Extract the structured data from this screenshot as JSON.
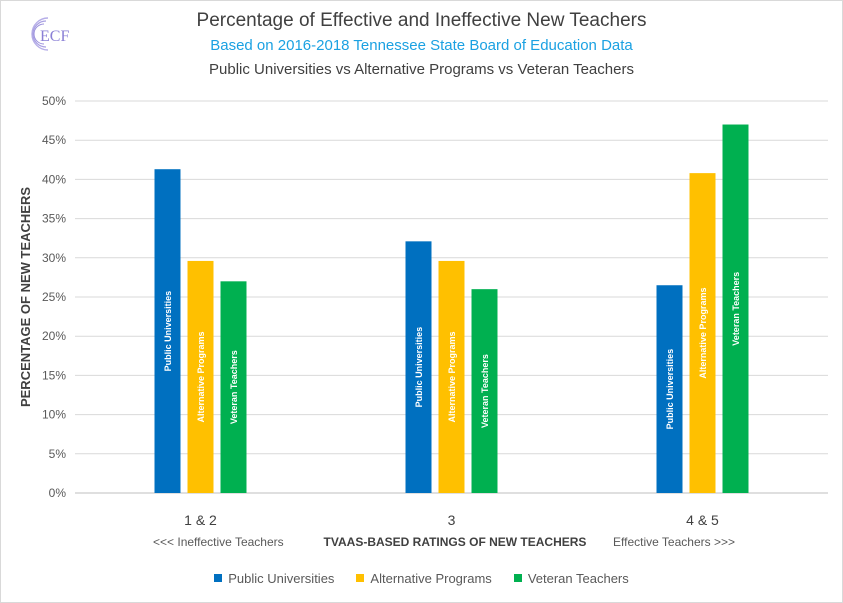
{
  "logo": {
    "text": "ECF",
    "color": "#8a7fd6"
  },
  "chart_data": {
    "type": "bar",
    "title": "Percentage of Effective and Ineffective New Teachers",
    "subtitle": "Based on 2016-2018 Tennessee State Board of Education Data",
    "subtitle2": "Public Universities vs Alternative Programs vs Veteran Teachers",
    "ylabel": "PERCENTAGE OF NEW TEACHERS",
    "xlabel": "TVAAS-BASED RATINGS OF NEW TEACHERS",
    "xlabel_left": "<<<  Ineffective Teachers",
    "xlabel_right": "Effective Teachers  >>>",
    "categories": [
      "1 & 2",
      "3",
      "4 & 5"
    ],
    "yticks": [
      "0%",
      "5%",
      "10%",
      "15%",
      "20%",
      "25%",
      "30%",
      "35%",
      "40%",
      "45%",
      "50%"
    ],
    "ylim": [
      0,
      50
    ],
    "grid": true,
    "legend_position": "bottom",
    "series": [
      {
        "name": "Public Universities",
        "color": "#0070c0",
        "values": [
          41.3,
          32.1,
          26.5
        ]
      },
      {
        "name": "Alternative Programs",
        "color": "#ffc000",
        "values": [
          29.6,
          29.6,
          40.8
        ]
      },
      {
        "name": "Veteran Teachers",
        "color": "#00b050",
        "values": [
          27.0,
          26.0,
          47.0
        ]
      }
    ]
  }
}
